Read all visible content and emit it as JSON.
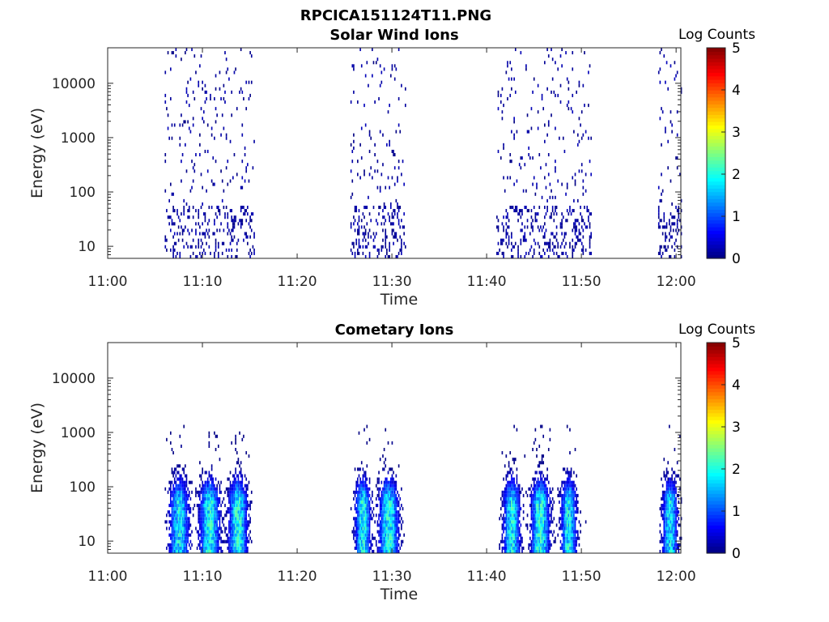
{
  "figure": {
    "title": "RPCICA151124T11.PNG"
  },
  "chart_data": [
    {
      "type": "heatmap",
      "title": "Solar Wind Ions",
      "xlabel": "Time",
      "ylabel": "Energy (eV)",
      "x_ticks": [
        "11:00",
        "11:10",
        "11:20",
        "11:30",
        "11:40",
        "11:50",
        "12:00"
      ],
      "x_range_minutes": [
        0,
        60.5
      ],
      "y_scale": "log",
      "y_ticks": [
        "10",
        "100",
        "1000",
        "10000"
      ],
      "y_range": [
        6,
        45000
      ],
      "colorbar": {
        "label": "Log Counts",
        "ticks": [
          "0",
          "1",
          "2",
          "3",
          "4",
          "5"
        ],
        "range": [
          0,
          5
        ],
        "colormap": "jet"
      },
      "activity_intervals_minutes": [
        [
          6,
          15.5
        ],
        [
          25.5,
          31.5
        ],
        [
          41,
          51
        ],
        [
          58,
          60.5
        ]
      ],
      "high_energy_cutoff_ev": 40000,
      "max_log_counts": 0.3,
      "seed": 11
    },
    {
      "type": "heatmap",
      "title": "Cometary Ions",
      "xlabel": "Time",
      "ylabel": "Energy (eV)",
      "x_ticks": [
        "11:00",
        "11:10",
        "11:20",
        "11:30",
        "11:40",
        "11:50",
        "12:00"
      ],
      "x_range_minutes": [
        0,
        60.5
      ],
      "y_scale": "log",
      "y_ticks": [
        "10",
        "100",
        "1000",
        "10000"
      ],
      "y_range": [
        6,
        45000
      ],
      "colorbar": {
        "label": "Log Counts",
        "ticks": [
          "0",
          "1",
          "2",
          "3",
          "4",
          "5"
        ],
        "range": [
          0,
          5
        ],
        "colormap": "jet"
      },
      "activity_intervals_minutes": [
        [
          6,
          15.5
        ],
        [
          25.5,
          31.5
        ],
        [
          41,
          51
        ],
        [
          58,
          60.5
        ]
      ],
      "bursts": [
        {
          "center": 7.5,
          "width": 1.3,
          "peak": 2.0
        },
        {
          "center": 10.7,
          "width": 1.3,
          "peak": 2.2
        },
        {
          "center": 13.7,
          "width": 1.2,
          "peak": 2.3
        },
        {
          "center": 26.9,
          "width": 1.0,
          "peak": 2.2
        },
        {
          "center": 29.6,
          "width": 1.3,
          "peak": 2.2
        },
        {
          "center": 42.6,
          "width": 1.1,
          "peak": 2.1
        },
        {
          "center": 45.6,
          "width": 1.2,
          "peak": 2.3
        },
        {
          "center": 48.6,
          "width": 1.0,
          "peak": 2.1
        },
        {
          "center": 59.3,
          "width": 1.0,
          "peak": 2.0
        }
      ],
      "high_energy_cutoff_ev": 2000,
      "max_log_counts": 2.3,
      "seed": 29
    }
  ]
}
